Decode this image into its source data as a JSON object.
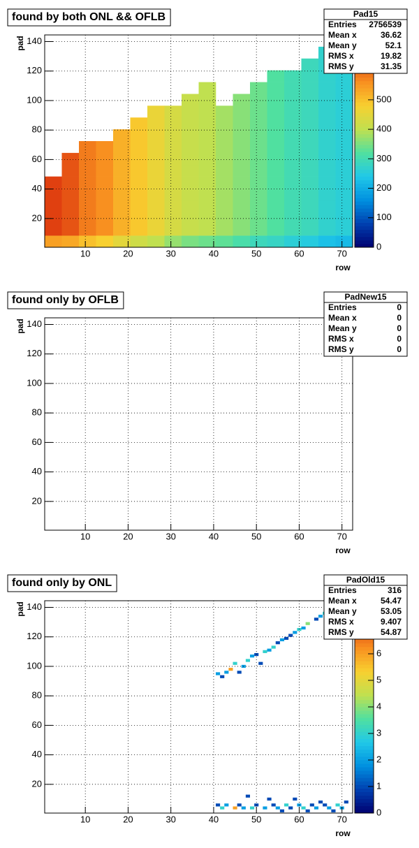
{
  "chart_data": [
    {
      "type": "heatmap",
      "title": "found by both ONL && OFLB",
      "xlabel": "row",
      "ylabel": "pad",
      "xlim": [
        0.5,
        72.5
      ],
      "ylim": [
        0.5,
        144.5
      ],
      "xticks": [
        10,
        20,
        30,
        40,
        50,
        60,
        70
      ],
      "yticks": [
        20,
        40,
        60,
        80,
        100,
        120,
        140
      ],
      "grid": true,
      "zlim": [
        0,
        720
      ],
      "zticks": [
        0,
        100,
        200,
        300,
        400,
        500
      ],
      "palette": [
        "#000070",
        "#0040b0",
        "#0090e0",
        "#20c8e8",
        "#50e0a0",
        "#c0e050",
        "#f8d030",
        "#f89020",
        "#e04010",
        "#a00000"
      ],
      "stats_title": "Pad15",
      "stats": [
        {
          "label": "Entries",
          "value": 2756539
        },
        {
          "label": "Mean x",
          "value": 36.62
        },
        {
          "label": "Mean y",
          "value": 52.1
        },
        {
          "label": "RMS x",
          "value": 19.82
        },
        {
          "label": "RMS y",
          "value": 31.35
        }
      ],
      "xbins": [
        0.5,
        4.5,
        8.5,
        12.5,
        16.5,
        20.5,
        24.5,
        28.5,
        32.5,
        36.5,
        40.5,
        44.5,
        48.5,
        52.5,
        56.5,
        60.5,
        64.5,
        68.5,
        72.5
      ],
      "ybins": [
        0.5,
        8.5,
        16.5,
        24.5,
        32.5,
        40.5,
        48.5,
        56.5,
        64.5,
        72.5,
        80.5,
        88.5,
        96.5,
        104.5,
        112.5,
        120.5,
        128.5,
        136.5,
        144.5
      ],
      "z": [
        [
          540,
          530,
          500,
          480,
          450,
          420,
          400,
          370,
          350,
          340,
          330,
          310,
          290,
          280,
          260,
          250,
          230,
          220
        ],
        [
          640,
          620,
          580,
          560,
          520,
          490,
          460,
          430,
          410,
          400,
          380,
          360,
          340,
          320,
          300,
          290,
          270,
          260
        ],
        [
          640,
          620,
          580,
          560,
          520,
          490,
          460,
          430,
          410,
          400,
          380,
          360,
          340,
          320,
          300,
          290,
          270,
          260
        ],
        [
          640,
          620,
          580,
          560,
          520,
          490,
          460,
          430,
          410,
          400,
          380,
          360,
          340,
          320,
          300,
          290,
          270,
          260
        ],
        [
          640,
          620,
          580,
          560,
          520,
          490,
          460,
          430,
          410,
          400,
          380,
          360,
          340,
          320,
          300,
          290,
          270,
          260
        ],
        [
          640,
          620,
          580,
          560,
          520,
          490,
          460,
          430,
          410,
          400,
          380,
          360,
          340,
          320,
          300,
          290,
          270,
          260
        ],
        [
          null,
          620,
          580,
          560,
          520,
          490,
          460,
          430,
          410,
          400,
          380,
          360,
          340,
          320,
          300,
          290,
          270,
          260
        ],
        [
          null,
          620,
          580,
          560,
          520,
          490,
          460,
          430,
          410,
          400,
          380,
          360,
          340,
          320,
          300,
          290,
          270,
          260
        ],
        [
          null,
          null,
          580,
          560,
          520,
          490,
          460,
          430,
          410,
          400,
          380,
          360,
          340,
          320,
          300,
          290,
          270,
          260
        ],
        [
          null,
          null,
          null,
          null,
          520,
          490,
          460,
          430,
          410,
          400,
          380,
          360,
          340,
          320,
          300,
          290,
          270,
          260
        ],
        [
          null,
          null,
          null,
          null,
          null,
          490,
          460,
          430,
          410,
          400,
          380,
          360,
          340,
          320,
          300,
          290,
          270,
          260
        ],
        [
          null,
          null,
          null,
          null,
          null,
          null,
          460,
          430,
          410,
          400,
          380,
          360,
          340,
          320,
          300,
          290,
          270,
          260
        ],
        [
          null,
          null,
          null,
          null,
          null,
          null,
          null,
          null,
          410,
          400,
          null,
          360,
          340,
          320,
          300,
          290,
          270,
          260
        ],
        [
          null,
          null,
          null,
          null,
          null,
          null,
          null,
          null,
          null,
          400,
          null,
          null,
          340,
          320,
          300,
          290,
          270,
          260
        ],
        [
          null,
          null,
          null,
          null,
          null,
          null,
          null,
          null,
          null,
          null,
          null,
          null,
          null,
          320,
          300,
          290,
          270,
          260
        ],
        [
          null,
          null,
          null,
          null,
          null,
          null,
          null,
          null,
          null,
          null,
          null,
          null,
          null,
          null,
          null,
          290,
          270,
          260
        ],
        [
          null,
          null,
          null,
          null,
          null,
          null,
          null,
          null,
          null,
          null,
          null,
          null,
          null,
          null,
          null,
          null,
          270,
          260
        ],
        [
          null,
          null,
          null,
          null,
          null,
          null,
          null,
          null,
          null,
          null,
          null,
          null,
          null,
          null,
          null,
          null,
          null,
          260
        ]
      ]
    },
    {
      "type": "heatmap",
      "title": "found only by OFLB",
      "xlabel": "row",
      "ylabel": "pad",
      "xlim": [
        0.5,
        72.5
      ],
      "ylim": [
        0.5,
        144.5
      ],
      "xticks": [
        10,
        20,
        30,
        40,
        50,
        60,
        70
      ],
      "yticks": [
        20,
        40,
        60,
        80,
        100,
        120,
        140
      ],
      "grid": true,
      "stats_title": "PadNew15",
      "stats": [
        {
          "label": "Entries",
          "value": 0
        },
        {
          "label": "Mean x",
          "value": 0
        },
        {
          "label": "Mean y",
          "value": 0
        },
        {
          "label": "RMS x",
          "value": 0
        },
        {
          "label": "RMS y",
          "value": 0
        }
      ]
    },
    {
      "type": "heatmap",
      "title": "found only by ONL",
      "xlabel": "row",
      "ylabel": "pad",
      "xlim": [
        0.5,
        72.5
      ],
      "ylim": [
        0.5,
        144.5
      ],
      "xticks": [
        10,
        20,
        30,
        40,
        50,
        60,
        70
      ],
      "yticks": [
        20,
        40,
        60,
        80,
        100,
        120,
        140
      ],
      "grid": true,
      "zlim": [
        0,
        8
      ],
      "zticks": [
        0,
        1,
        2,
        3,
        4,
        5,
        6
      ],
      "palette": [
        "#000070",
        "#0040b0",
        "#0090e0",
        "#20c8e8",
        "#50e0a0",
        "#c0e050",
        "#f8d030",
        "#f89020",
        "#e04010",
        "#a00000"
      ],
      "stats_title": "PadOld15",
      "stats": [
        {
          "label": "Entries",
          "value": 316
        },
        {
          "label": "Mean x",
          "value": 54.47
        },
        {
          "label": "Mean y",
          "value": 53.05
        },
        {
          "label": "RMS x",
          "value": 9.407
        },
        {
          "label": "RMS y",
          "value": 54.87
        }
      ],
      "binwidth": [
        1,
        2
      ],
      "x": [
        41,
        42,
        43,
        44,
        45,
        46,
        47,
        48,
        49,
        50,
        51,
        52,
        53,
        54,
        55,
        56,
        57,
        58,
        59,
        60,
        61,
        62,
        64,
        65,
        66,
        68,
        70,
        41,
        42,
        43,
        45,
        46,
        47,
        48,
        49,
        50,
        52,
        53,
        54,
        55,
        56,
        57,
        58,
        59,
        60,
        61,
        62,
        63,
        64,
        65,
        66,
        67,
        68,
        69,
        70,
        71
      ],
      "y": [
        95,
        93,
        96,
        98,
        102,
        96,
        100,
        104,
        107,
        108,
        102,
        110,
        111,
        113,
        116,
        118,
        119,
        121,
        123,
        125,
        126,
        129,
        132,
        134,
        136,
        139,
        141,
        6,
        4,
        6,
        4,
        6,
        4,
        12,
        4,
        6,
        4,
        10,
        6,
        4,
        2,
        6,
        4,
        10,
        6,
        4,
        2,
        6,
        4,
        8,
        6,
        4,
        2,
        6,
        4,
        8
      ],
      "z": [
        2,
        1,
        2,
        6,
        3,
        1,
        2,
        3,
        2,
        1,
        1,
        3,
        2,
        3,
        1,
        2,
        1,
        1,
        2,
        3,
        2,
        4,
        1,
        2,
        3,
        2,
        1,
        1,
        3,
        2,
        6,
        1,
        2,
        1,
        3,
        1,
        2,
        1,
        1,
        2,
        1,
        3,
        1,
        1,
        2,
        3,
        1,
        1,
        2,
        1,
        1,
        2,
        1,
        3,
        2,
        1
      ]
    }
  ]
}
